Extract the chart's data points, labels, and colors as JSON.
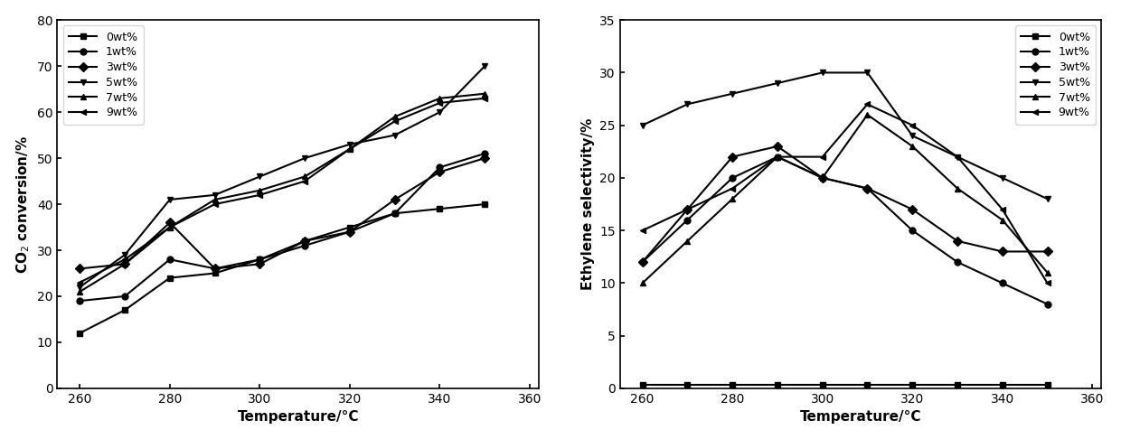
{
  "temperature": [
    260,
    270,
    280,
    290,
    300,
    310,
    320,
    330,
    340,
    350
  ],
  "co2_conversion": {
    "0wt%": [
      12,
      17,
      24,
      25,
      28,
      32,
      35,
      38,
      39,
      40
    ],
    "1wt%": [
      19,
      20,
      28,
      26,
      28,
      31,
      34,
      38,
      48,
      51
    ],
    "3wt%": [
      26,
      27,
      36,
      26,
      27,
      32,
      34,
      41,
      47,
      50
    ],
    "5wt%": [
      22,
      29,
      41,
      42,
      46,
      50,
      53,
      55,
      60,
      70
    ],
    "7wt%": [
      21,
      27,
      35,
      41,
      43,
      46,
      52,
      59,
      63,
      64
    ],
    "9wt%": [
      23,
      28,
      35,
      40,
      42,
      45,
      52,
      58,
      62,
      63
    ]
  },
  "ethylene_selectivity": {
    "0wt%": [
      0.3,
      0.3,
      0.3,
      0.3,
      0.3,
      0.3,
      0.3,
      0.3,
      0.3,
      0.3
    ],
    "1wt%": [
      12,
      16,
      20,
      22,
      20,
      19,
      15,
      12,
      10,
      8
    ],
    "3wt%": [
      12,
      17,
      22,
      23,
      20,
      19,
      17,
      14,
      13,
      13
    ],
    "5wt%": [
      25,
      27,
      28,
      29,
      30,
      30,
      24,
      22,
      20,
      18
    ],
    "7wt%": [
      10,
      14,
      18,
      22,
      20,
      26,
      23,
      19,
      16,
      11
    ],
    "9wt%": [
      15,
      17,
      19,
      22,
      22,
      27,
      25,
      22,
      17,
      10
    ]
  },
  "markers": [
    "s",
    "o",
    "D",
    "v",
    "^",
    "<"
  ],
  "labels": [
    "0wt%",
    "1wt%",
    "3wt%",
    "5wt%",
    "7wt%",
    "9wt%"
  ],
  "color": "black",
  "left_ylabel": "CO$_2$ conversion/%",
  "right_ylabel": "Ethylene selectivity/%",
  "xlabel_left": "Temperature/°C",
  "xlabel_right": "Temperature/°C",
  "left_ylim": [
    0,
    80
  ],
  "right_ylim": [
    0,
    35
  ],
  "xlim": [
    255,
    362
  ],
  "xticks": [
    260,
    280,
    300,
    320,
    340,
    360
  ],
  "left_yticks": [
    0,
    10,
    20,
    30,
    40,
    50,
    60,
    70,
    80
  ],
  "right_yticks": [
    0,
    5,
    10,
    15,
    20,
    25,
    30,
    35
  ]
}
